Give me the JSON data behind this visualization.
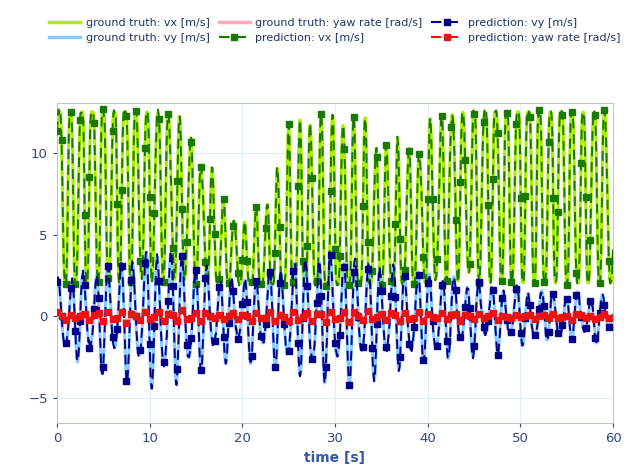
{
  "title": "",
  "xlabel": "time [s]",
  "xlim": [
    0,
    60
  ],
  "ylim": [
    -6.5,
    13
  ],
  "yticks": [
    -5,
    0,
    5,
    10
  ],
  "xticks": [
    0,
    10,
    20,
    30,
    40,
    50,
    60
  ],
  "gt_vx_color": "#AAEE00",
  "gt_vy_color": "#88CCFF",
  "gt_yaw_color": "#FFAABB",
  "pred_vx_color": "#1A7A00",
  "pred_vy_color": "#00008B",
  "pred_yaw_color": "#EE1111",
  "legend_labels": [
    "ground truth: vx [m/s]",
    "ground truth: vy [m/s]",
    "ground truth: yaw rate [rad/s]",
    "prediction: vx [m/s]",
    "prediction: vy [m/s]",
    "prediction: yaw rate [rad/s]"
  ],
  "background_color": "#ffffff",
  "grid_color": "#ddeeff",
  "figsize": [
    6.32,
    4.7
  ],
  "dpi": 100
}
